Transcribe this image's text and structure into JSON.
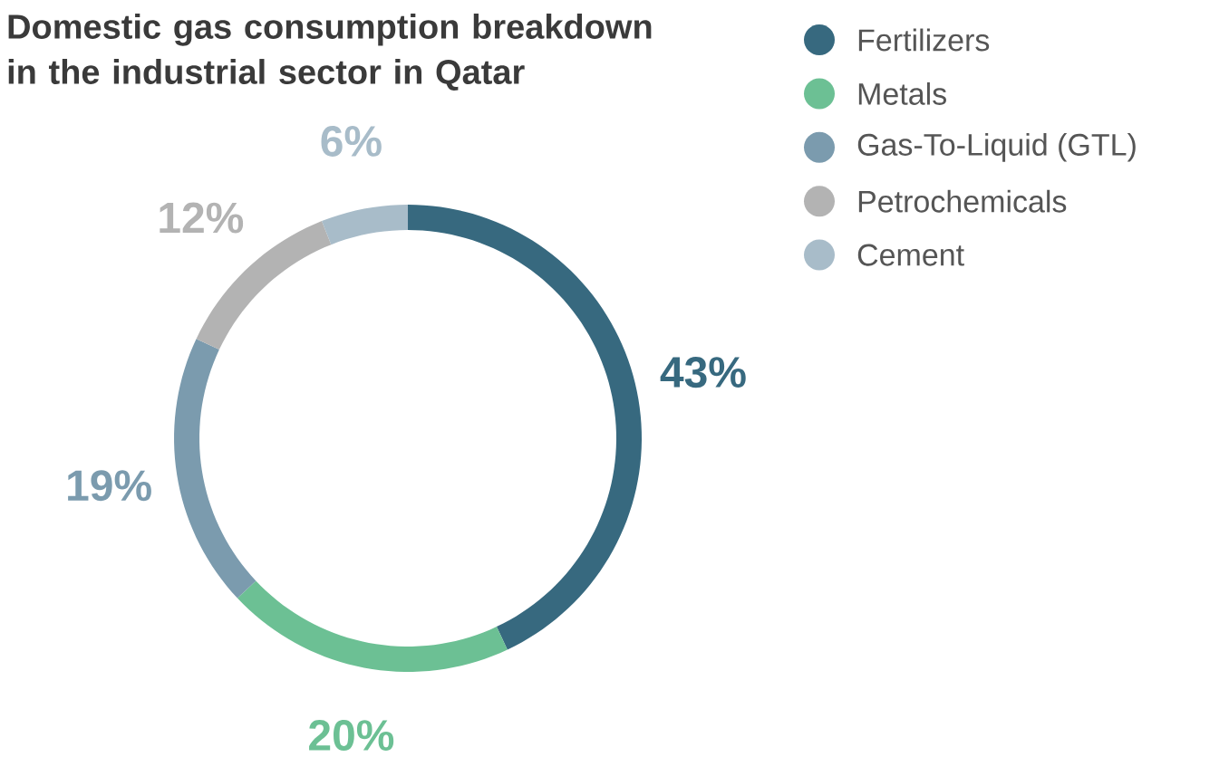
{
  "chart_data": {
    "type": "donut",
    "title": "Domestic gas consumption breakdown in the industrial sector in Qatar",
    "categories": [
      "Fertilizers",
      "Metals",
      "Gas-To-Liquid (GTL)",
      "Petrochemicals",
      "Cement"
    ],
    "values": [
      43,
      20,
      19,
      12,
      6
    ],
    "colors": [
      "#37697f",
      "#6cc094",
      "#7b9bae",
      "#b3b3b3",
      "#a8bcc9"
    ],
    "value_labels": [
      "43%",
      "20%",
      "19%",
      "12%",
      "6%"
    ],
    "legend": "top right"
  }
}
